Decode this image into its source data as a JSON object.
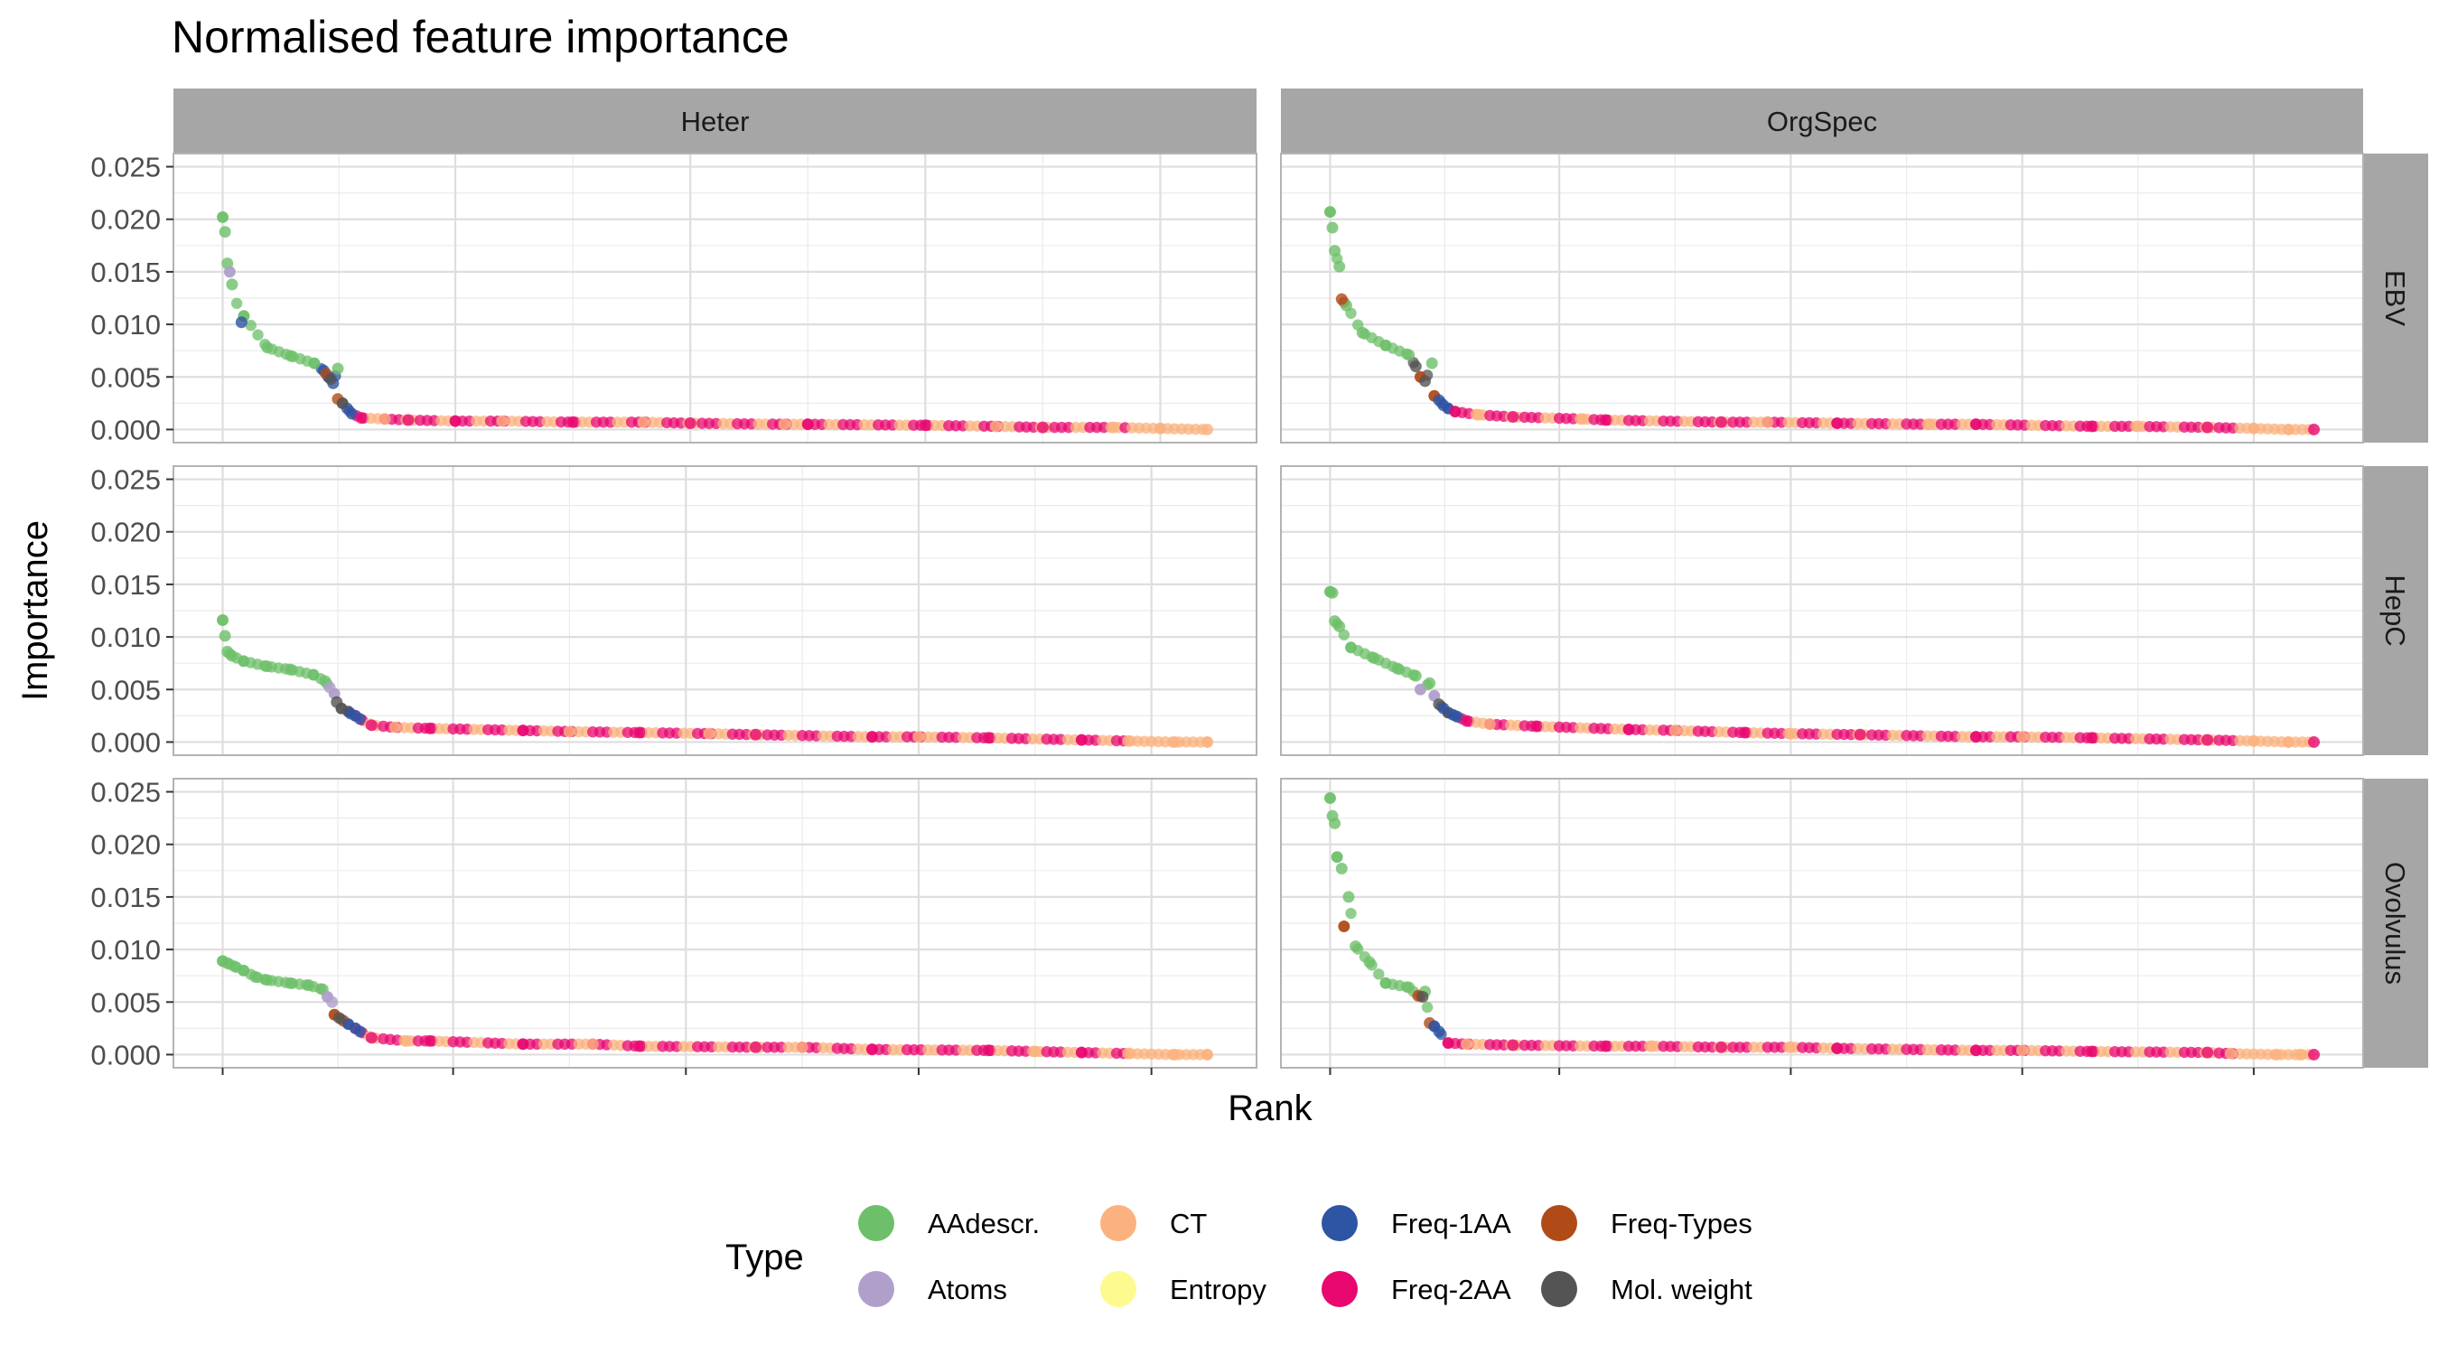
{
  "chart_data": {
    "type": "scatter",
    "title": "Normalised feature importance",
    "xlabel": "Rank",
    "ylabel": "Importance",
    "x_tick_labels": "none",
    "ylim": [
      0,
      0.025
    ],
    "y_ticks": [
      0,
      0.005,
      0.01,
      0.015,
      0.02,
      0.025
    ],
    "y_tick_labels": [
      "0.000",
      "0.005",
      "0.010",
      "0.015",
      "0.020",
      "0.025"
    ],
    "grid": true,
    "facet_columns": [
      "Heter",
      "OrgSpec"
    ],
    "facet_rows": [
      "EBV",
      "HepC",
      "Ovolvulus"
    ],
    "legend": {
      "title": "Type",
      "placement": "bottom",
      "entries": [
        {
          "label": "AAdescr.",
          "color": "#6dbf69"
        },
        {
          "label": "Atoms",
          "color": "#b09fcb"
        },
        {
          "label": "CT",
          "color": "#fbb27e"
        },
        {
          "label": "Entropy",
          "color": "#fdfb8f"
        },
        {
          "label": "Freq-1AA",
          "color": "#2e54a4"
        },
        {
          "label": "Freq-2AA",
          "color": "#e8086f"
        },
        {
          "label": "Freq-Types",
          "color": "#b04b18"
        },
        {
          "label": "Mol. weight",
          "color": "#545454"
        }
      ]
    },
    "panels": [
      {
        "column": "Heter",
        "row": "EBV",
        "n_features": 420,
        "series": [
          {
            "type": "AAdescr.",
            "rank": [
              1,
              2,
              3,
              5,
              10,
              20,
              30,
              40,
              50
            ],
            "importance": [
              0.0202,
              0.0188,
              0.0158,
              0.0138,
              0.0108,
              0.0078,
              0.007,
              0.0063,
              0.0058
            ]
          },
          {
            "type": "Freq-1AA",
            "rank": [
              9,
              44,
              46,
              48,
              54,
              56
            ],
            "importance": [
              0.0102,
              0.0056,
              0.005,
              0.0044,
              0.002,
              0.0015
            ]
          },
          {
            "type": "Freq-Types",
            "rank": [
              45,
              50
            ],
            "importance": [
              0.0053,
              0.0029
            ]
          },
          {
            "type": "Atoms",
            "rank": [
              4
            ],
            "importance": [
              0.015
            ]
          },
          {
            "type": "Mol. weight",
            "rank": [
              47,
              52
            ],
            "importance": [
              0.0048,
              0.0025
            ]
          },
          {
            "type": "Freq-2AA",
            "rank": [
              60,
              80,
              100,
              150,
              200,
              250,
              300,
              350
            ],
            "importance": [
              0.0011,
              0.0009,
              0.0008,
              0.0007,
              0.0006,
              0.0005,
              0.0004,
              0.0002
            ]
          },
          {
            "type": "CT",
            "rank": [
              70,
              120,
              180,
              240,
              330,
              380,
              400,
              420
            ],
            "importance": [
              0.001,
              0.0008,
              0.0007,
              0.0005,
              0.0003,
              0.0002,
              0.0001,
              0.0
            ]
          }
        ]
      },
      {
        "column": "OrgSpec",
        "row": "EBV",
        "n_features": 426,
        "series": [
          {
            "type": "AAdescr.",
            "rank": [
              1,
              2,
              3,
              5,
              8,
              15,
              25,
              35,
              45
            ],
            "importance": [
              0.0207,
              0.0192,
              0.017,
              0.0155,
              0.0118,
              0.0092,
              0.008,
              0.0071,
              0.0063
            ]
          },
          {
            "type": "Freq-Types",
            "rank": [
              6,
              40,
              46
            ],
            "importance": [
              0.0124,
              0.005,
              0.0032
            ]
          },
          {
            "type": "Freq-1AA",
            "rank": [
              48,
              50,
              52
            ],
            "importance": [
              0.0028,
              0.0023,
              0.002
            ]
          },
          {
            "type": "Mol. weight",
            "rank": [
              38,
              42
            ],
            "importance": [
              0.006,
              0.0046
            ]
          },
          {
            "type": "Freq-2AA",
            "rank": [
              55,
              80,
              120,
              170,
              220,
              280,
              330,
              380,
              426
            ],
            "importance": [
              0.0017,
              0.0012,
              0.0009,
              0.0007,
              0.0006,
              0.0005,
              0.0003,
              0.0002,
              0.0
            ]
          },
          {
            "type": "CT",
            "rank": [
              65,
              110,
              190,
              260,
              350,
              400,
              415
            ],
            "importance": [
              0.0014,
              0.001,
              0.0007,
              0.0005,
              0.0003,
              0.0001,
              0.0
            ]
          }
        ]
      },
      {
        "column": "Heter",
        "row": "HepC",
        "n_features": 424,
        "series": [
          {
            "type": "AAdescr.",
            "rank": [
              1,
              2,
              3,
              5,
              10,
              20,
              30,
              40,
              45
            ],
            "importance": [
              0.0116,
              0.0101,
              0.0086,
              0.0082,
              0.0077,
              0.0072,
              0.0069,
              0.0064,
              0.0058
            ]
          },
          {
            "type": "Atoms",
            "rank": [
              47,
              49
            ],
            "importance": [
              0.0052,
              0.0046
            ]
          },
          {
            "type": "Mol. weight",
            "rank": [
              50,
              52,
              55
            ],
            "importance": [
              0.0038,
              0.0032,
              0.0029
            ]
          },
          {
            "type": "Freq-1AA",
            "rank": [
              56,
              58,
              60
            ],
            "importance": [
              0.0027,
              0.0025,
              0.0022
            ]
          },
          {
            "type": "Freq-2AA",
            "rank": [
              65,
              90,
              130,
              180,
              230,
              280,
              330,
              370
            ],
            "importance": [
              0.0016,
              0.0013,
              0.0011,
              0.0009,
              0.0007,
              0.0005,
              0.0004,
              0.0002
            ]
          },
          {
            "type": "CT",
            "rank": [
              75,
              150,
              210,
              300,
              390,
              410,
              424
            ],
            "importance": [
              0.0014,
              0.001,
              0.0008,
              0.0005,
              0.0001,
              0.0,
              0.0
            ]
          }
        ]
      },
      {
        "column": "OrgSpec",
        "row": "HepC",
        "n_features": 426,
        "series": [
          {
            "type": "AAdescr.",
            "rank": [
              1,
              2,
              3,
              5,
              10,
              20,
              30,
              38,
              44
            ],
            "importance": [
              0.0143,
              0.0142,
              0.0115,
              0.011,
              0.009,
              0.008,
              0.007,
              0.0063,
              0.0056
            ]
          },
          {
            "type": "Atoms",
            "rank": [
              40,
              46
            ],
            "importance": [
              0.005,
              0.0044
            ]
          },
          {
            "type": "Mol. weight",
            "rank": [
              48,
              52
            ],
            "importance": [
              0.0036,
              0.0028
            ]
          },
          {
            "type": "Freq-1AA",
            "rank": [
              50,
              54,
              56
            ],
            "importance": [
              0.0032,
              0.0026,
              0.0024
            ]
          },
          {
            "type": "Freq-2AA",
            "rank": [
              60,
              90,
              130,
              180,
              230,
              280,
              330,
              380,
              426
            ],
            "importance": [
              0.002,
              0.0015,
              0.0012,
              0.0009,
              0.0007,
              0.0005,
              0.0004,
              0.0002,
              0.0
            ]
          },
          {
            "type": "CT",
            "rank": [
              70,
              150,
              200,
              300,
              400,
              415
            ],
            "importance": [
              0.0017,
              0.0011,
              0.0008,
              0.0005,
              0.0001,
              0.0
            ]
          }
        ]
      },
      {
        "column": "Heter",
        "row": "Ovolvulus",
        "n_features": 424,
        "series": [
          {
            "type": "AAdescr.",
            "rank": [
              1,
              3,
              6,
              10,
              15,
              20,
              30,
              38,
              44
            ],
            "importance": [
              0.0089,
              0.0087,
              0.0084,
              0.008,
              0.0074,
              0.0071,
              0.0068,
              0.0066,
              0.0062
            ]
          },
          {
            "type": "Atoms",
            "rank": [
              46,
              48
            ],
            "importance": [
              0.0055,
              0.005
            ]
          },
          {
            "type": "Freq-Types",
            "rank": [
              49,
              53
            ],
            "importance": [
              0.0038,
              0.0032
            ]
          },
          {
            "type": "Mol. weight",
            "rank": [
              51
            ],
            "importance": [
              0.0035
            ]
          },
          {
            "type": "Freq-1AA",
            "rank": [
              55,
              58,
              60
            ],
            "importance": [
              0.0029,
              0.0025,
              0.0022
            ]
          },
          {
            "type": "Freq-2AA",
            "rank": [
              65,
              90,
              130,
              180,
              230,
              280,
              330,
              370
            ],
            "importance": [
              0.0016,
              0.0013,
              0.001,
              0.0008,
              0.0007,
              0.0005,
              0.0004,
              0.0002
            ]
          },
          {
            "type": "CT",
            "rank": [
              80,
              160,
              250,
              350,
              390,
              410,
              424
            ],
            "importance": [
              0.0013,
              0.001,
              0.0007,
              0.0003,
              0.0001,
              0.0,
              0.0
            ]
          }
        ]
      },
      {
        "column": "OrgSpec",
        "row": "Ovolvulus",
        "n_features": 426,
        "series": [
          {
            "type": "AAdescr.",
            "rank": [
              1,
              2,
              3,
              4,
              6,
              9,
              12,
              18,
              25,
              35,
              42
            ],
            "importance": [
              0.0244,
              0.0227,
              0.022,
              0.0188,
              0.0177,
              0.015,
              0.0103,
              0.0088,
              0.0068,
              0.0064,
              0.006
            ]
          },
          {
            "type": "Freq-Types",
            "rank": [
              7,
              39,
              44
            ],
            "importance": [
              0.0122,
              0.0056,
              0.003
            ]
          },
          {
            "type": "Mol. weight",
            "rank": [
              41
            ],
            "importance": [
              0.0055
            ]
          },
          {
            "type": "Freq-1AA",
            "rank": [
              46,
              48
            ],
            "importance": [
              0.0027,
              0.0022
            ]
          },
          {
            "type": "Freq-2AA",
            "rank": [
              52,
              80,
              120,
              170,
              220,
              280,
              330,
              380,
              426
            ],
            "importance": [
              0.0011,
              0.0009,
              0.0008,
              0.0007,
              0.0006,
              0.0004,
              0.0003,
              0.0002,
              0.0
            ]
          },
          {
            "type": "CT",
            "rank": [
              60,
              140,
              200,
              300,
              390,
              410,
              420
            ],
            "importance": [
              0.001,
              0.0008,
              0.0007,
              0.0004,
              0.0001,
              0.0,
              0.0
            ]
          }
        ]
      }
    ]
  }
}
